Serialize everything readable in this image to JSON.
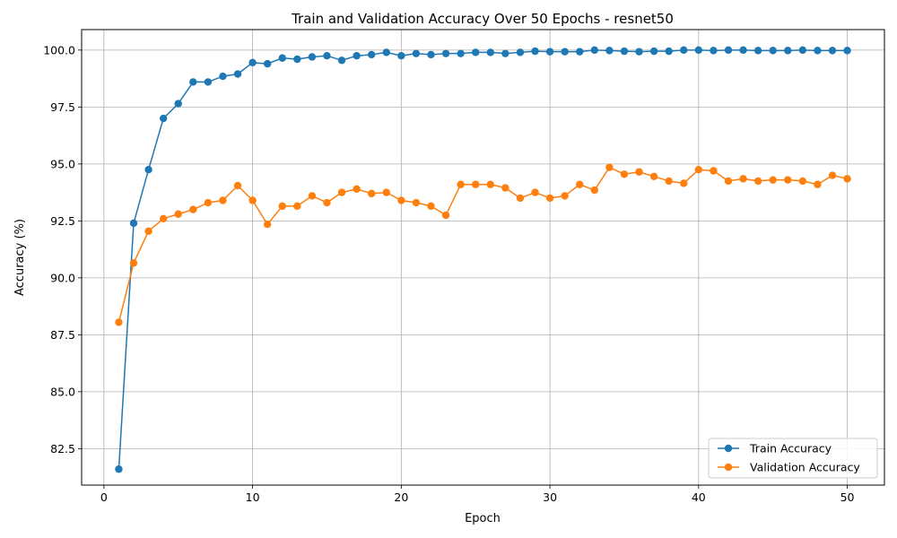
{
  "chart_data": {
    "type": "line",
    "title": "Train and Validation Accuracy Over 50 Epochs - resnet50",
    "xlabel": "Epoch",
    "ylabel": "Accuracy (%)",
    "xlim": [
      -1.5,
      52.5
    ],
    "ylim": [
      80.9,
      100.9
    ],
    "xticks": [
      0,
      10,
      20,
      30,
      40,
      50
    ],
    "yticks": [
      82.5,
      85.0,
      87.5,
      90.0,
      92.5,
      95.0,
      97.5,
      100.0
    ],
    "xtick_labels": [
      "0",
      "10",
      "20",
      "30",
      "40",
      "50"
    ],
    "ytick_labels": [
      "82.5",
      "85.0",
      "87.5",
      "90.0",
      "92.5",
      "95.0",
      "97.5",
      "100.0"
    ],
    "grid": true,
    "legend_position": "bottom-right",
    "x": [
      1,
      2,
      3,
      4,
      5,
      6,
      7,
      8,
      9,
      10,
      11,
      12,
      13,
      14,
      15,
      16,
      17,
      18,
      19,
      20,
      21,
      22,
      23,
      24,
      25,
      26,
      27,
      28,
      29,
      30,
      31,
      32,
      33,
      34,
      35,
      36,
      37,
      38,
      39,
      40,
      41,
      42,
      43,
      44,
      45,
      46,
      47,
      48,
      49,
      50
    ],
    "series": [
      {
        "name": "Train Accuracy",
        "color": "#1f77b4",
        "values": [
          81.6,
          92.4,
          94.75,
          97.0,
          97.65,
          98.6,
          98.6,
          98.85,
          98.95,
          99.45,
          99.4,
          99.65,
          99.6,
          99.7,
          99.75,
          99.55,
          99.75,
          99.8,
          99.9,
          99.75,
          99.85,
          99.8,
          99.85,
          99.85,
          99.9,
          99.9,
          99.85,
          99.9,
          99.95,
          99.93,
          99.93,
          99.93,
          100.0,
          99.98,
          99.95,
          99.93,
          99.95,
          99.95,
          100.0,
          100.0,
          99.98,
          100.0,
          100.0,
          99.98,
          99.98,
          99.98,
          100.0,
          99.98,
          99.98,
          99.98
        ]
      },
      {
        "name": "Validation Accuracy",
        "color": "#ff7f0e",
        "values": [
          88.05,
          90.65,
          92.05,
          92.6,
          92.8,
          93.0,
          93.3,
          93.4,
          94.05,
          93.4,
          92.35,
          93.15,
          93.15,
          93.6,
          93.3,
          93.75,
          93.9,
          93.7,
          93.75,
          93.4,
          93.3,
          93.15,
          92.75,
          94.1,
          94.1,
          94.1,
          93.95,
          93.5,
          93.75,
          93.5,
          93.6,
          94.1,
          93.85,
          94.85,
          94.55,
          94.65,
          94.45,
          94.25,
          94.15,
          94.75,
          94.7,
          94.25,
          94.35,
          94.25,
          94.3,
          94.3,
          94.25,
          94.1,
          94.5,
          94.35
        ]
      }
    ]
  }
}
